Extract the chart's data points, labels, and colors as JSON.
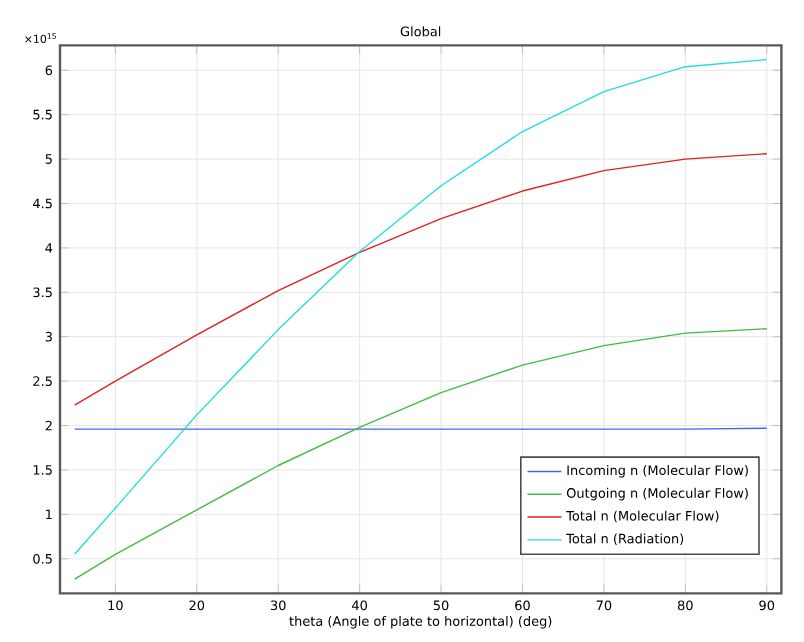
{
  "chart_data": {
    "type": "line",
    "title": "Global",
    "xlabel": "theta (Angle of plate to horizontal) (deg)",
    "annotations": [
      "×10$^{15}$"
    ],
    "x": [
      5,
      10,
      20,
      30,
      40,
      50,
      60,
      70,
      80,
      90
    ],
    "series": [
      {
        "name": "Incoming n (Molecular Flow)",
        "color": "#4466ee",
        "values": [
          1.96,
          1.96,
          1.96,
          1.96,
          1.96,
          1.96,
          1.96,
          1.96,
          1.96,
          1.97
        ]
      },
      {
        "name": "Outgoing n (Molecular Flow)",
        "color": "#44bb44",
        "values": [
          0.27,
          0.55,
          1.05,
          1.55,
          1.98,
          2.37,
          2.68,
          2.9,
          3.04,
          3.09
        ]
      },
      {
        "name": "Total n (Molecular Flow)",
        "color": "#dd2222",
        "values": [
          2.23,
          2.5,
          3.02,
          3.52,
          3.95,
          4.33,
          4.64,
          4.87,
          5.0,
          5.06
        ]
      },
      {
        "name": "Total n (Radiation)",
        "color": "#22dddd",
        "values": [
          0.55,
          1.07,
          2.12,
          3.08,
          3.96,
          4.7,
          5.31,
          5.76,
          6.04,
          6.12
        ]
      }
    ],
    "xlim": [
      3.2,
      91.8
    ],
    "ylim": [
      0.11,
      6.28
    ],
    "xticks": [
      10,
      20,
      30,
      40,
      50,
      60,
      70,
      80,
      90
    ],
    "yticks": [
      0.5,
      1,
      1.5,
      2,
      2.5,
      3,
      3.5,
      4,
      4.5,
      5,
      5.5,
      6
    ],
    "grid": true,
    "legend": "bottom right",
    "marker": "none",
    "line_style": "solid"
  }
}
